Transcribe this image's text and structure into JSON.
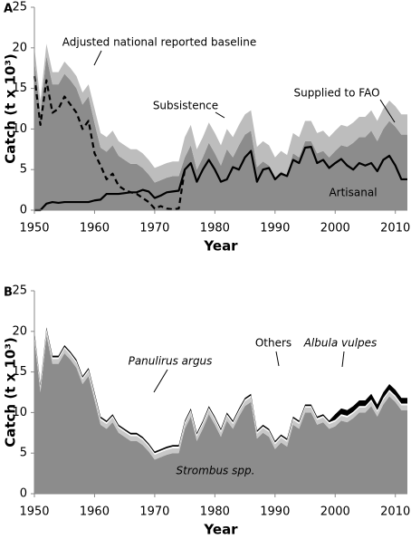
{
  "chart_data": [
    {
      "type": "area",
      "panel": "A",
      "xlabel": "Year",
      "ylabel": "Catch (t x 10³)",
      "xlim": [
        1950,
        2012
      ],
      "xticks": [
        1950,
        1960,
        1970,
        1980,
        1990,
        2000,
        2010
      ],
      "ylim": [
        0,
        25
      ],
      "yticks": [
        0,
        5,
        10,
        15,
        20,
        25
      ],
      "x": [
        1950,
        1951,
        1952,
        1953,
        1954,
        1955,
        1956,
        1957,
        1958,
        1959,
        1960,
        1961,
        1962,
        1963,
        1964,
        1965,
        1966,
        1967,
        1968,
        1969,
        1970,
        1971,
        1972,
        1973,
        1974,
        1975,
        1976,
        1977,
        1978,
        1979,
        1980,
        1981,
        1982,
        1983,
        1984,
        1985,
        1986,
        1987,
        1988,
        1989,
        1990,
        1991,
        1992,
        1993,
        1994,
        1995,
        1996,
        1997,
        1998,
        1999,
        2000,
        2001,
        2002,
        2003,
        2004,
        2005,
        2006,
        2007,
        2008,
        2009,
        2010,
        2011,
        2012
      ],
      "series": [
        {
          "name": "Artisanal",
          "style": "area",
          "color": "#8c8c8c",
          "values": [
            18.5,
            12,
            19,
            15.5,
            15.5,
            16.8,
            16,
            15,
            13,
            14,
            10.7,
            7.7,
            7.2,
            8,
            6.7,
            6.2,
            5.7,
            5.7,
            5.2,
            4.4,
            3.4,
            3.7,
            4,
            4.2,
            4.2,
            6.5,
            8,
            5,
            6.5,
            8.3,
            7,
            5.5,
            7.5,
            6.5,
            8,
            9.3,
            9.8,
            5.3,
            6,
            5.5,
            4,
            4.8,
            4.3,
            7,
            6.5,
            8.5,
            8.5,
            7,
            7.3,
            6.5,
            7.3,
            8,
            7.8,
            8.3,
            9,
            9,
            9.8,
            8.5,
            10,
            11,
            10.3,
            9.3,
            9.3
          ]
        },
        {
          "name": "Subsistence",
          "style": "area",
          "color": "#bdbdbd",
          "values": [
            1.5,
            1.5,
            1.5,
            1.5,
            1.5,
            1.5,
            1.5,
            1.5,
            1.5,
            1.5,
            1.8,
            1.8,
            1.8,
            1.8,
            1.8,
            1.8,
            1.8,
            1.8,
            1.8,
            1.8,
            1.8,
            1.8,
            1.8,
            1.8,
            1.8,
            2.5,
            2.5,
            2.5,
            2.5,
            2.5,
            2.5,
            2.5,
            2.5,
            2.5,
            2.5,
            2.5,
            2.5,
            2.5,
            2.5,
            2.5,
            2.5,
            2.5,
            2.5,
            2.5,
            2.5,
            2.5,
            2.5,
            2.5,
            2.5,
            2.5,
            2.5,
            2.5,
            2.5,
            2.5,
            2.5,
            2.5,
            2.5,
            2.5,
            2.5,
            2.5,
            2.5,
            2.5,
            2.5
          ]
        },
        {
          "name": "Supplied to FAO",
          "style": "line",
          "color": "#000000",
          "values": [
            0,
            0,
            0.8,
            1,
            0.9,
            1,
            1,
            1,
            1,
            1,
            1.2,
            1.3,
            2,
            2,
            2,
            2.1,
            2.2,
            2.2,
            2.5,
            2.3,
            1.5,
            1.8,
            2.2,
            2.3,
            2.4,
            5,
            5.8,
            3.5,
            5,
            6.2,
            5,
            3.5,
            3.8,
            5.3,
            5,
            6.5,
            7.3,
            3.5,
            5,
            5.2,
            3.8,
            4.5,
            4.2,
            6.2,
            5.8,
            7.7,
            7.8,
            5.8,
            6.2,
            5.2,
            5.8,
            6.3,
            5.5,
            5,
            5.8,
            5.5,
            5.8,
            4.8,
            6.2,
            6.7,
            5.5,
            3.8,
            3.8
          ]
        },
        {
          "name": "Adjusted national reported baseline",
          "style": "dashed",
          "color": "#000000",
          "values": [
            16.5,
            10.5,
            16,
            12,
            12.5,
            14,
            13,
            12,
            10,
            11,
            7,
            5.5,
            3.8,
            4.5,
            3,
            2.5,
            2.2,
            2,
            1.5,
            1,
            0.2,
            0.5,
            0.2,
            0.1,
            0.2,
            5,
            null,
            null,
            null,
            null,
            null,
            null,
            null,
            null,
            null,
            null,
            null,
            null,
            null,
            null,
            null,
            null,
            null,
            null,
            null,
            null,
            null,
            null,
            null,
            null,
            null,
            null,
            null,
            null,
            null,
            null,
            null,
            null,
            null,
            null,
            null,
            null,
            null
          ]
        }
      ]
    },
    {
      "type": "area",
      "panel": "B",
      "xlabel": "Year",
      "ylabel": "Catch (t x 10³)",
      "xlim": [
        1950,
        2012
      ],
      "xticks": [
        1950,
        1960,
        1970,
        1980,
        1990,
        2000,
        2010
      ],
      "ylim": [
        0,
        25
      ],
      "yticks": [
        0,
        5,
        10,
        15,
        20,
        25
      ],
      "x": [
        1950,
        1951,
        1952,
        1953,
        1954,
        1955,
        1956,
        1957,
        1958,
        1959,
        1960,
        1961,
        1962,
        1963,
        1964,
        1965,
        1966,
        1967,
        1968,
        1969,
        1970,
        1971,
        1972,
        1973,
        1974,
        1975,
        1976,
        1977,
        1978,
        1979,
        1980,
        1981,
        1982,
        1983,
        1984,
        1985,
        1986,
        1987,
        1988,
        1989,
        1990,
        1991,
        1992,
        1993,
        1994,
        1995,
        1996,
        1997,
        1998,
        1999,
        2000,
        2001,
        2002,
        2003,
        2004,
        2005,
        2006,
        2007,
        2008,
        2009,
        2010,
        2011,
        2012
      ],
      "series": [
        {
          "name": "Strombus spp.",
          "style": "area",
          "color": "#8c8c8c",
          "values": [
            19,
            12.5,
            19.5,
            16,
            16,
            17.3,
            16.5,
            15.5,
            13.5,
            14.5,
            11.5,
            8.5,
            8,
            8.8,
            7.5,
            7,
            6.5,
            6.5,
            6,
            5.2,
            4.2,
            4.5,
            4.8,
            5,
            5,
            8,
            9.5,
            6.5,
            8,
            9.8,
            8.5,
            7,
            9,
            8,
            9.5,
            10.8,
            11.3,
            6.8,
            7.5,
            7,
            5.5,
            6.3,
            5.8,
            8.5,
            8,
            10,
            10,
            8.5,
            8.8,
            8,
            8.3,
            9,
            8.8,
            9.3,
            10,
            10,
            10.8,
            9.5,
            11,
            12,
            11.3,
            10.3,
            10.3
          ]
        },
        {
          "name": "Panulirus argus",
          "style": "area",
          "color": "#c8c8c8",
          "values": [
            0.6,
            0.6,
            0.6,
            0.6,
            0.6,
            0.6,
            0.6,
            0.6,
            0.6,
            0.6,
            0.6,
            0.6,
            0.6,
            0.6,
            0.6,
            0.6,
            0.6,
            0.6,
            0.6,
            0.6,
            0.6,
            0.6,
            0.6,
            0.6,
            0.6,
            0.6,
            0.6,
            0.6,
            0.6,
            0.6,
            0.6,
            0.6,
            0.6,
            0.6,
            0.6,
            0.6,
            0.6,
            0.6,
            0.6,
            0.6,
            0.6,
            0.6,
            0.6,
            0.6,
            0.6,
            0.6,
            0.6,
            0.6,
            0.6,
            0.6,
            0.6,
            0.6,
            0.6,
            0.6,
            0.6,
            0.6,
            0.6,
            0.6,
            0.6,
            0.6,
            0.6,
            0.6,
            0.6
          ]
        },
        {
          "name": "Albula vulpes",
          "style": "area",
          "color": "#ffffff",
          "values": [
            0.2,
            0.2,
            0.2,
            0.2,
            0.2,
            0.2,
            0.2,
            0.2,
            0.2,
            0.2,
            0.2,
            0.2,
            0.2,
            0.2,
            0.2,
            0.2,
            0.2,
            0.2,
            0.2,
            0.2,
            0.2,
            0.2,
            0.2,
            0.2,
            0.2,
            0.2,
            0.2,
            0.2,
            0.2,
            0.2,
            0.2,
            0.2,
            0.2,
            0.2,
            0.2,
            0.2,
            0.2,
            0.2,
            0.2,
            0.2,
            0.2,
            0.2,
            0.2,
            0.2,
            0.2,
            0.2,
            0.2,
            0.2,
            0.2,
            0.2,
            0.2,
            0.2,
            0.2,
            0.2,
            0.2,
            0.2,
            0.2,
            0.2,
            0.2,
            0.2,
            0.2,
            0.2,
            0.2
          ]
        },
        {
          "name": "Others",
          "style": "area",
          "color": "#000000",
          "values": [
            0.2,
            0.2,
            0.2,
            0.2,
            0.2,
            0.2,
            0.2,
            0.2,
            0.2,
            0.2,
            0.2,
            0.2,
            0.2,
            0.2,
            0.2,
            0.2,
            0.2,
            0.2,
            0.2,
            0.2,
            0.2,
            0.2,
            0.2,
            0.2,
            0.2,
            0.2,
            0.2,
            0.2,
            0.2,
            0.2,
            0.2,
            0.2,
            0.2,
            0.2,
            0.2,
            0.2,
            0.2,
            0.2,
            0.2,
            0.2,
            0.2,
            0.2,
            0.2,
            0.2,
            0.2,
            0.2,
            0.2,
            0.2,
            0.2,
            0.2,
            0.7,
            0.7,
            0.7,
            0.7,
            0.7,
            0.7,
            0.7,
            0.7,
            0.7,
            0.7,
            0.7,
            0.7,
            0.7
          ]
        }
      ]
    }
  ]
}
